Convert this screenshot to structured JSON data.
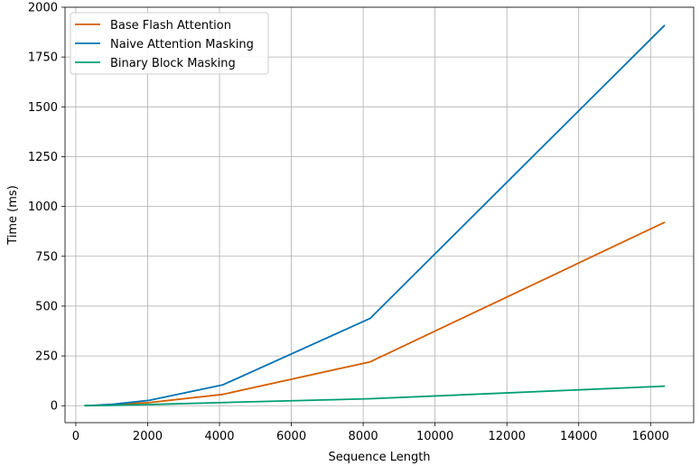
{
  "chart_data": {
    "type": "line",
    "title": "",
    "xlabel": "Sequence Length",
    "ylabel": "Time (ms)",
    "xlim": [
      -300,
      17200
    ],
    "ylim": [
      -85,
      2000
    ],
    "grid": true,
    "legend_position": "top-left",
    "xticks": [
      0,
      2000,
      4000,
      6000,
      8000,
      10000,
      12000,
      14000,
      16000
    ],
    "yticks": [
      0,
      250,
      500,
      750,
      1000,
      1250,
      1500,
      1750,
      2000
    ],
    "x": [
      256,
      512,
      1024,
      2048,
      4096,
      8192,
      16384
    ],
    "series": [
      {
        "name": "Base Flash Attention",
        "color": "#d55e00",
        "values": [
          0.5,
          1.5,
          5,
          16,
          57,
          220,
          920
        ]
      },
      {
        "name": "Naive Attention Masking",
        "color": "#0072b2",
        "values": [
          0.8,
          2,
          7,
          27,
          105,
          438,
          1908
        ]
      },
      {
        "name": "Binary Block Masking",
        "color": "#009e73",
        "values": [
          0.2,
          0.5,
          2,
          6,
          16,
          35,
          98
        ]
      }
    ]
  }
}
